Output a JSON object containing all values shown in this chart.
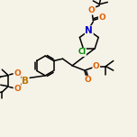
{
  "bond_color": "#000000",
  "bg_color": "#f5f2e8",
  "atom_colors": {
    "O": "#e06000",
    "N": "#0000cc",
    "B": "#bb7700",
    "C": "#000000",
    "Cl": "#008800"
  },
  "bond_width": 1.1,
  "font_size": 6.5
}
